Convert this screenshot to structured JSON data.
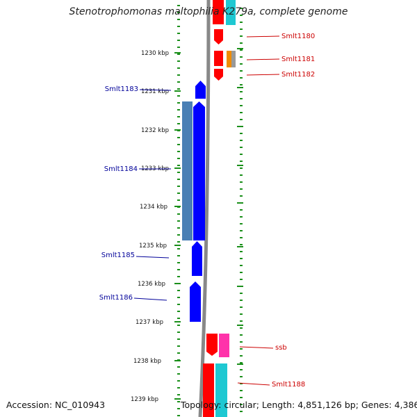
{
  "title": "Stenotrophomonas maltophilia K279a, complete genome",
  "footer": {
    "accession": "Accession: NC_010943",
    "summary": "Topology: circular; Length: 4,851,126 bp; Genes: 4,386"
  },
  "colors": {
    "forward_gene": "#ff0000",
    "forward_gene_alt": "#ff33aa",
    "forward_gene_orange": "#f08c00",
    "reverse_gene": "#0000ff",
    "reverse_cds_steel": "#4a7fb5",
    "cyan_feature": "#1ec8d2",
    "grey_feature": "#999999",
    "backbone": "#888888",
    "ticks": "#1a8f1a",
    "label_forward": "#cc0000",
    "label_reverse": "#000099"
  },
  "scale_labels": [
    "1230 kbp",
    "1231 kbp",
    "1232 kbp",
    "1233 kbp",
    "1234 kbp",
    "1235 kbp",
    "1236 kbp",
    "1237 kbp",
    "1238 kbp",
    "1239 kbp"
  ],
  "gene_labels": {
    "forward": [
      "Smlt1180",
      "Smlt1181",
      "Smlt1182",
      "ssb",
      "Smlt1188"
    ],
    "reverse": [
      "Smlt1183",
      "Smlt1184",
      "Smlt1185",
      "Smlt1186"
    ]
  }
}
